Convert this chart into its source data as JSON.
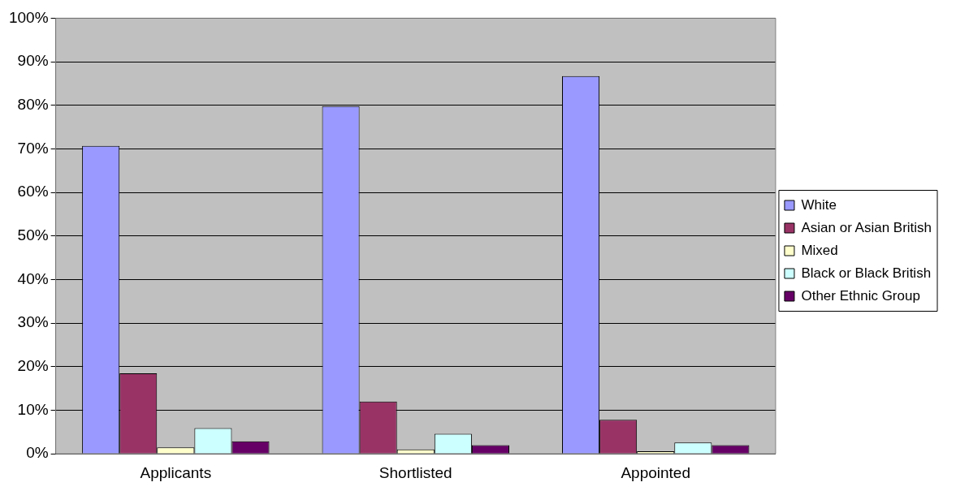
{
  "chart_data": {
    "type": "bar",
    "categories": [
      "Applicants",
      "Shortlisted",
      "Appointed"
    ],
    "series": [
      {
        "name": "White",
        "color": "#9999ff",
        "values": [
          70.7,
          79.8,
          86.7
        ]
      },
      {
        "name": "Asian or Asian British",
        "color": "#993366",
        "values": [
          18.5,
          12,
          7.8
        ]
      },
      {
        "name": "Mixed",
        "color": "#ffffcc",
        "values": [
          1.5,
          1.0,
          0.6
        ]
      },
      {
        "name": "Black or Black British",
        "color": "#ccffff",
        "values": [
          5.9,
          4.6,
          2.6
        ]
      },
      {
        "name": "Other Ethnic Group",
        "color": "#660066",
        "values": [
          2.9,
          2.0,
          2.0
        ]
      }
    ],
    "ylim": [
      0,
      100
    ],
    "yticks": [
      {
        "value": 0,
        "label": "0%"
      },
      {
        "value": 10,
        "label": "10%"
      },
      {
        "value": 20,
        "label": "20%"
      },
      {
        "value": 30,
        "label": "30%"
      },
      {
        "value": 40,
        "label": "40%"
      },
      {
        "value": 50,
        "label": "50%"
      },
      {
        "value": 60,
        "label": "60%"
      },
      {
        "value": 70,
        "label": "70%"
      },
      {
        "value": 80,
        "label": "80%"
      },
      {
        "value": 90,
        "label": "90%"
      },
      {
        "value": 100,
        "label": "100%"
      }
    ],
    "grid": "y",
    "legend": "right"
  }
}
